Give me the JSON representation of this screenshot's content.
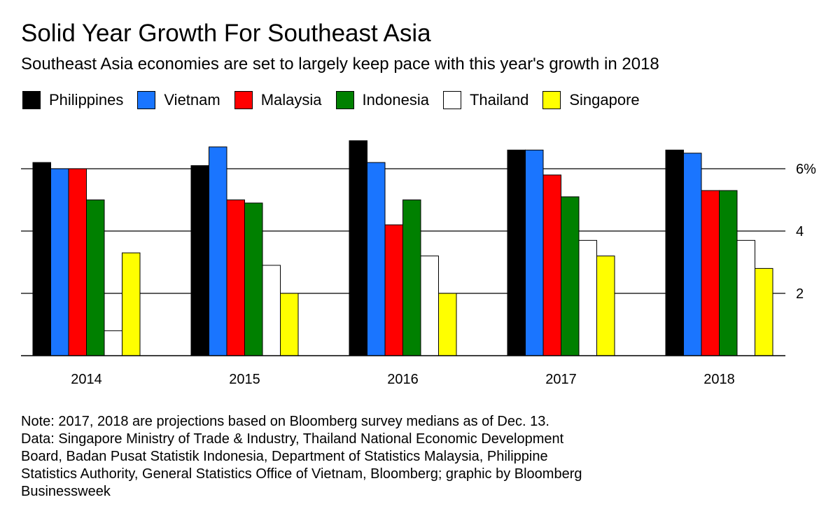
{
  "chart_data": {
    "type": "bar",
    "title": "Solid Year Growth For Southeast Asia",
    "subtitle": "Southeast Asia economies are set to largely keep pace with this year's growth in 2018",
    "categories": [
      "2014",
      "2015",
      "2016",
      "2017",
      "2018"
    ],
    "series": [
      {
        "name": "Philippines",
        "color": "#000000",
        "values": [
          6.2,
          6.1,
          6.9,
          6.6,
          6.6
        ]
      },
      {
        "name": "Vietnam",
        "color": "#1a75ff",
        "values": [
          6.0,
          6.7,
          6.2,
          6.6,
          6.5
        ]
      },
      {
        "name": "Malaysia",
        "color": "#ff0000",
        "values": [
          6.0,
          5.0,
          4.2,
          5.8,
          5.3
        ]
      },
      {
        "name": "Indonesia",
        "color": "#008000",
        "values": [
          5.0,
          4.9,
          5.0,
          5.1,
          5.3
        ]
      },
      {
        "name": "Thailand",
        "color": "#ffffff",
        "values": [
          0.8,
          2.9,
          3.2,
          3.7,
          3.7
        ]
      },
      {
        "name": "Singapore",
        "color": "#ffff00",
        "values": [
          3.3,
          2.0,
          2.0,
          3.2,
          2.8
        ]
      }
    ],
    "ylim": [
      0,
      7
    ],
    "yticks": [
      {
        "value": 6,
        "label": "6%"
      },
      {
        "value": 4,
        "label": "4"
      },
      {
        "value": 2,
        "label": "2"
      }
    ],
    "grid": true,
    "legend_position": "top-left"
  },
  "notes": [
    "Note: 2017, 2018 are projections based on Bloomberg survey medians as of Dec. 13.",
    "Data: Singapore Ministry of Trade & Industry, Thailand National Economic Development",
    "Board, Badan Pusat Statistik Indonesia, Department of Statistics Malaysia, Philippine",
    "Statistics Authority, General Statistics Office of Vietnam, Bloomberg; graphic by Bloomberg",
    "Businessweek"
  ]
}
